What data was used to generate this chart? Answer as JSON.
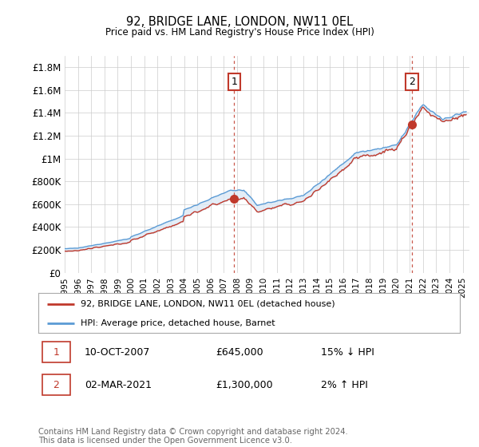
{
  "title": "92, BRIDGE LANE, LONDON, NW11 0EL",
  "subtitle": "Price paid vs. HM Land Registry's House Price Index (HPI)",
  "ylabel_ticks": [
    "£0",
    "£200K",
    "£400K",
    "£600K",
    "£800K",
    "£1M",
    "£1.2M",
    "£1.4M",
    "£1.6M",
    "£1.8M"
  ],
  "ytick_values": [
    0,
    200000,
    400000,
    600000,
    800000,
    1000000,
    1200000,
    1400000,
    1600000,
    1800000
  ],
  "ylim": [
    0,
    1900000
  ],
  "xlim_start": 1995.0,
  "xlim_end": 2025.5,
  "hpi_color": "#5b9bd5",
  "hpi_fill_color": "#dce9f5",
  "price_color": "#c0392b",
  "sale1_date": "10-OCT-2007",
  "sale1_price": 645000,
  "sale1_hpi_rel": "15% ↓ HPI",
  "sale2_date": "02-MAR-2021",
  "sale2_price": 1300000,
  "sale2_hpi_rel": "2% ↑ HPI",
  "sale1_x": 2007.78,
  "sale2_x": 2021.17,
  "legend_label_red": "92, BRIDGE LANE, LONDON, NW11 0EL (detached house)",
  "legend_label_blue": "HPI: Average price, detached house, Barnet",
  "footnote": "Contains HM Land Registry data © Crown copyright and database right 2024.\nThis data is licensed under the Open Government Licence v3.0.",
  "background_color": "#ffffff",
  "grid_color": "#cccccc"
}
